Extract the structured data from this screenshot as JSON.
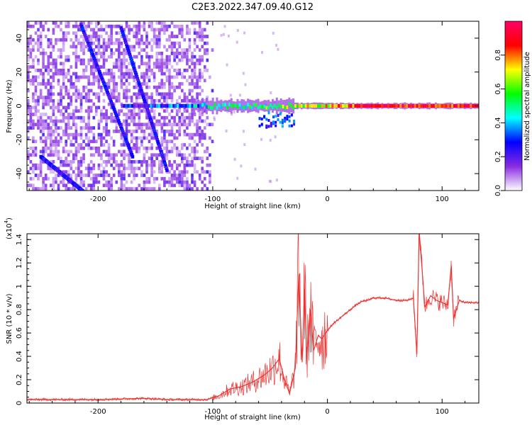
{
  "figure": {
    "title": "C2E3.2022.347.09.40.G12"
  },
  "chart_data": [
    {
      "type": "heatmap",
      "title": "C2E3.2022.347.09.40.G12",
      "xlabel": "Height of straight line (km)",
      "ylabel": "Frequency (Hz)",
      "xlim": [
        -262,
        132
      ],
      "ylim": [
        -50,
        50
      ],
      "xticks": [
        -200,
        -100,
        0,
        100
      ],
      "yticks": [
        -40,
        -20,
        0,
        20,
        40
      ],
      "colorbar": {
        "label": "Normalized spectral amplitude",
        "range": [
          0,
          1
        ],
        "ticks": [
          0.0,
          0.2,
          0.4,
          0.6,
          0.8
        ],
        "colormap": [
          "#ffffff",
          "#8a2be2",
          "#0000ff",
          "#00ffff",
          "#00ff00",
          "#ffff00",
          "#ff0000",
          "#ff0066"
        ]
      },
      "features": [
        {
          "name": "carrier line",
          "freq": 0,
          "x_start": -180,
          "x_end": 132,
          "amplitude": "rises from ~0.2 at -180 km to ~0.9 above 0 km"
        },
        {
          "name": "slanted line A",
          "from": [
            -215,
            48
          ],
          "to": [
            -170,
            -30
          ]
        },
        {
          "name": "slanted line B",
          "from": [
            -180,
            46
          ],
          "to": [
            -140,
            -38
          ]
        },
        {
          "name": "slanted line C",
          "from": [
            -250,
            -30
          ],
          "to": [
            -205,
            -55
          ]
        },
        {
          "name": "noise field",
          "x_start": -262,
          "x_end": -100
        }
      ]
    },
    {
      "type": "line",
      "xlabel": "Height of straight line (km)",
      "ylabel": "SNR (10 * v/v)",
      "yscale_label": "(x10",
      "yscale_exp": "4",
      "yscale_close": ")",
      "xlim": [
        -262,
        132
      ],
      "ylim": [
        0,
        1.45
      ],
      "xticks": [
        -200,
        -100,
        0,
        100
      ],
      "yticks": [
        0.0,
        0.2,
        0.4,
        0.6,
        0.8,
        1.0,
        1.2,
        1.4
      ],
      "color": "#ee3333",
      "x": [
        -262,
        -240,
        -220,
        -200,
        -180,
        -160,
        -140,
        -120,
        -105,
        -95,
        -85,
        -75,
        -65,
        -55,
        -48,
        -42,
        -38,
        -33,
        -28,
        -25,
        -22,
        -20,
        -18,
        -15,
        -12,
        -8,
        -5,
        0,
        5,
        10,
        15,
        20,
        25,
        30,
        35,
        40,
        45,
        50,
        60,
        70,
        75,
        78,
        80,
        85,
        90,
        95,
        100,
        105,
        108,
        110,
        115,
        120,
        125,
        132
      ],
      "values": [
        0.03,
        0.03,
        0.03,
        0.03,
        0.035,
        0.04,
        0.03,
        0.03,
        0.03,
        0.06,
        0.12,
        0.14,
        0.18,
        0.24,
        0.3,
        0.38,
        0.22,
        0.08,
        0.3,
        1.1,
        0.35,
        0.98,
        0.4,
        0.8,
        0.45,
        0.58,
        0.55,
        0.62,
        0.68,
        0.72,
        0.76,
        0.8,
        0.84,
        0.87,
        0.88,
        0.9,
        0.9,
        0.9,
        0.88,
        0.88,
        0.9,
        0.42,
        1.48,
        0.82,
        0.92,
        0.88,
        0.86,
        0.84,
        1.18,
        0.72,
        0.88,
        0.86,
        0.86,
        0.86
      ]
    }
  ]
}
